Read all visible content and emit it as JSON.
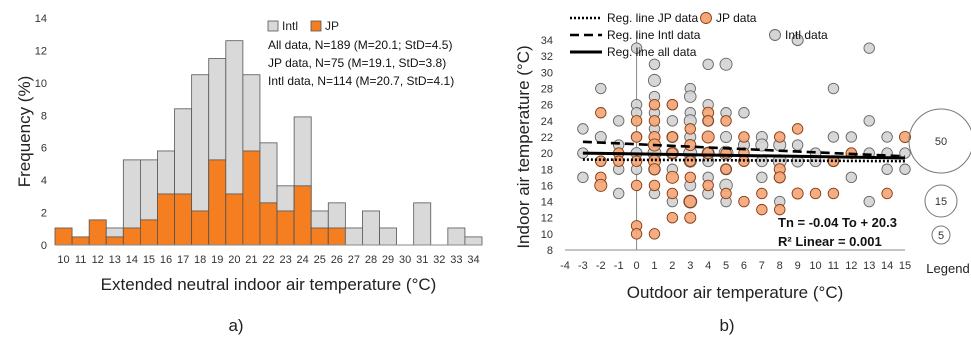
{
  "chart_data": [
    {
      "type": "bar",
      "panel_label": "a)",
      "xlabel": "Extended neutral indoor air temperature (°C)",
      "ylabel": "Frequency (%)",
      "ylim": [
        0,
        14
      ],
      "yticks": [
        0,
        2,
        4,
        6,
        8,
        10,
        12,
        14
      ],
      "grid": false,
      "legend_position": "top-right",
      "categories": [
        "10",
        "11",
        "12",
        "13",
        "14",
        "15",
        "16",
        "17",
        "18",
        "19",
        "20",
        "21",
        "22",
        "23",
        "24",
        "25",
        "26",
        "27",
        "28",
        "29",
        "30",
        "31",
        "32",
        "33",
        "34"
      ],
      "series": [
        {
          "name": "Intl",
          "color": "#d9d9d9",
          "values": [
            0,
            0,
            0,
            1.05,
            5.25,
            5.25,
            5.8,
            8.4,
            10.5,
            11.5,
            12.6,
            10.5,
            6.3,
            3.65,
            7.9,
            2.1,
            2.6,
            1.05,
            2.1,
            1.05,
            0,
            2.6,
            0,
            1.05,
            0.5
          ]
        },
        {
          "name": "JP",
          "color": "#f47e20",
          "values": [
            1.05,
            0.5,
            1.55,
            0.5,
            1.05,
            1.55,
            3.15,
            3.15,
            2.1,
            5.25,
            3.15,
            5.8,
            2.6,
            2.1,
            3.65,
            1.05,
            1.05,
            0,
            0,
            0,
            0,
            0,
            0,
            0,
            0
          ]
        }
      ],
      "annotations": [
        "All data,  N=189 (M=20.1; StD=4.5)",
        "JP data,  N=75 (M=19.1, StD=3.8)",
        "Intl data, N=114 (M=20.7, StD=4.1)"
      ]
    },
    {
      "type": "scatter",
      "panel_label": "b)",
      "xlabel": "Outdoor air temperature (°C)",
      "ylabel": "Indoor air temperature (°C)",
      "xlim": [
        -4,
        15
      ],
      "ylim": [
        8,
        35
      ],
      "xticks": [
        -4,
        -3,
        -2,
        -1,
        0,
        1,
        2,
        3,
        4,
        5,
        6,
        7,
        8,
        9,
        10,
        11,
        12,
        13,
        14,
        15
      ],
      "yticks": [
        8,
        10,
        12,
        14,
        16,
        18,
        20,
        22,
        24,
        26,
        28,
        30,
        32,
        34
      ],
      "grid": false,
      "legend_position": "top",
      "legend": {
        "title": "Legend",
        "items": [
          {
            "label": "Reg. line JP data",
            "style": "dotted"
          },
          {
            "label": "Reg. line Intl data",
            "style": "dashed"
          },
          {
            "label": "Reg. line all data",
            "style": "solid"
          },
          {
            "label": "JP data",
            "marker": "orange-circle"
          },
          {
            "label": "Intl data",
            "marker": "gray-circle"
          }
        ],
        "size_values": [
          50,
          15,
          5
        ]
      },
      "equation": "Tn = -0.04 To + 20.3",
      "r_squared": "R² Linear = 0.001",
      "regression_lines": [
        {
          "name": "Reg. line JP data",
          "style": "dotted",
          "x": [
            -3,
            15
          ],
          "y": [
            19.2,
            19.0
          ]
        },
        {
          "name": "Reg. line Intl data",
          "style": "dashed",
          "x": [
            -3,
            15
          ],
          "y": [
            21.4,
            19.6
          ]
        },
        {
          "name": "Reg. line all data",
          "style": "solid",
          "x": [
            -3,
            15
          ],
          "y": [
            20.0,
            19.4
          ]
        }
      ],
      "series": [
        {
          "name": "Intl data",
          "color": "#d4d4d4",
          "points": [
            {
              "x": -3,
              "y": 23,
              "s": 5
            },
            {
              "x": -3,
              "y": 20,
              "s": 5
            },
            {
              "x": -3,
              "y": 17,
              "s": 5
            },
            {
              "x": -2,
              "y": 28,
              "s": 5
            },
            {
              "x": -2,
              "y": 22,
              "s": 6
            },
            {
              "x": -2,
              "y": 19,
              "s": 5
            },
            {
              "x": -1,
              "y": 24,
              "s": 5
            },
            {
              "x": -1,
              "y": 21,
              "s": 5
            },
            {
              "x": -1,
              "y": 18,
              "s": 5
            },
            {
              "x": -1,
              "y": 15,
              "s": 5
            },
            {
              "x": 0,
              "y": 33,
              "s": 5
            },
            {
              "x": 0,
              "y": 26,
              "s": 5
            },
            {
              "x": 0,
              "y": 25,
              "s": 5
            },
            {
              "x": 0,
              "y": 22,
              "s": 5
            },
            {
              "x": 0,
              "y": 20,
              "s": 6
            },
            {
              "x": 0,
              "y": 18,
              "s": 5
            },
            {
              "x": 1,
              "y": 31,
              "s": 5
            },
            {
              "x": 1,
              "y": 29,
              "s": 8
            },
            {
              "x": 1,
              "y": 27,
              "s": 5
            },
            {
              "x": 1,
              "y": 25,
              "s": 5
            },
            {
              "x": 1,
              "y": 23,
              "s": 5
            },
            {
              "x": 1,
              "y": 20,
              "s": 10
            },
            {
              "x": 1,
              "y": 18,
              "s": 7
            },
            {
              "x": 1,
              "y": 15,
              "s": 5
            },
            {
              "x": 2,
              "y": 26,
              "s": 5
            },
            {
              "x": 2,
              "y": 24,
              "s": 5
            },
            {
              "x": 2,
              "y": 22,
              "s": 6
            },
            {
              "x": 2,
              "y": 20,
              "s": 8
            },
            {
              "x": 2,
              "y": 18,
              "s": 5
            },
            {
              "x": 2,
              "y": 14,
              "s": 5
            },
            {
              "x": 3,
              "y": 28,
              "s": 5
            },
            {
              "x": 3,
              "y": 27,
              "s": 7
            },
            {
              "x": 3,
              "y": 25,
              "s": 5
            },
            {
              "x": 3,
              "y": 24,
              "s": 8
            },
            {
              "x": 3,
              "y": 22,
              "s": 6
            },
            {
              "x": 3,
              "y": 20,
              "s": 10
            },
            {
              "x": 3,
              "y": 19,
              "s": 8
            },
            {
              "x": 3,
              "y": 16,
              "s": 6
            },
            {
              "x": 3,
              "y": 14,
              "s": 10
            },
            {
              "x": 4,
              "y": 31,
              "s": 5
            },
            {
              "x": 4,
              "y": 26,
              "s": 5
            },
            {
              "x": 4,
              "y": 24,
              "s": 6
            },
            {
              "x": 4,
              "y": 22,
              "s": 7
            },
            {
              "x": 4,
              "y": 20,
              "s": 8
            },
            {
              "x": 4,
              "y": 19,
              "s": 6
            },
            {
              "x": 4,
              "y": 17,
              "s": 5
            },
            {
              "x": 4,
              "y": 15,
              "s": 6
            },
            {
              "x": 5,
              "y": 31,
              "s": 8
            },
            {
              "x": 5,
              "y": 25,
              "s": 5
            },
            {
              "x": 5,
              "y": 22,
              "s": 6
            },
            {
              "x": 5,
              "y": 20,
              "s": 12
            },
            {
              "x": 5,
              "y": 18,
              "s": 6
            },
            {
              "x": 5,
              "y": 16,
              "s": 9
            },
            {
              "x": 5,
              "y": 14,
              "s": 5
            },
            {
              "x": 6,
              "y": 25,
              "s": 5
            },
            {
              "x": 6,
              "y": 21,
              "s": 6
            },
            {
              "x": 6,
              "y": 19,
              "s": 5
            },
            {
              "x": 7,
              "y": 22,
              "s": 6
            },
            {
              "x": 7,
              "y": 21,
              "s": 8
            },
            {
              "x": 7,
              "y": 19,
              "s": 6
            },
            {
              "x": 7,
              "y": 17,
              "s": 5
            },
            {
              "x": 8,
              "y": 21,
              "s": 8
            },
            {
              "x": 8,
              "y": 19,
              "s": 10
            },
            {
              "x": 8,
              "y": 17,
              "s": 6
            },
            {
              "x": 8,
              "y": 14,
              "s": 5
            },
            {
              "x": 9,
              "y": 34,
              "s": 6
            },
            {
              "x": 9,
              "y": 21,
              "s": 5
            },
            {
              "x": 9,
              "y": 19,
              "s": 7
            },
            {
              "x": 10,
              "y": 20,
              "s": 5
            },
            {
              "x": 10,
              "y": 19,
              "s": 6
            },
            {
              "x": 11,
              "y": 28,
              "s": 5
            },
            {
              "x": 11,
              "y": 22,
              "s": 5
            },
            {
              "x": 11,
              "y": 19,
              "s": 6
            },
            {
              "x": 12,
              "y": 22,
              "s": 5
            },
            {
              "x": 12,
              "y": 20,
              "s": 5
            },
            {
              "x": 12,
              "y": 17,
              "s": 5
            },
            {
              "x": 13,
              "y": 33,
              "s": 5
            },
            {
              "x": 13,
              "y": 24,
              "s": 5
            },
            {
              "x": 13,
              "y": 20,
              "s": 5
            },
            {
              "x": 13,
              "y": 14,
              "s": 5
            },
            {
              "x": 14,
              "y": 22,
              "s": 5
            },
            {
              "x": 14,
              "y": 20,
              "s": 5
            },
            {
              "x": 14,
              "y": 18,
              "s": 5
            },
            {
              "x": 15,
              "y": 20,
              "s": 5
            },
            {
              "x": 15,
              "y": 18,
              "s": 5
            }
          ]
        },
        {
          "name": "JP data",
          "color": "#f4a77a",
          "points": [
            {
              "x": -2,
              "y": 25,
              "s": 5
            },
            {
              "x": -2,
              "y": 19,
              "s": 5
            },
            {
              "x": -2,
              "y": 17,
              "s": 5
            },
            {
              "x": -2,
              "y": 16,
              "s": 8
            },
            {
              "x": -1,
              "y": 20,
              "s": 5
            },
            {
              "x": -1,
              "y": 19,
              "s": 5
            },
            {
              "x": 0,
              "y": 24,
              "s": 5
            },
            {
              "x": 0,
              "y": 22,
              "s": 5
            },
            {
              "x": 0,
              "y": 19,
              "s": 5
            },
            {
              "x": 0,
              "y": 16,
              "s": 5
            },
            {
              "x": 0,
              "y": 11,
              "s": 5
            },
            {
              "x": 0,
              "y": 10,
              "s": 5
            },
            {
              "x": 1,
              "y": 26,
              "s": 5
            },
            {
              "x": 1,
              "y": 24,
              "s": 5
            },
            {
              "x": 1,
              "y": 22,
              "s": 6
            },
            {
              "x": 1,
              "y": 21,
              "s": 8
            },
            {
              "x": 1,
              "y": 19,
              "s": 8
            },
            {
              "x": 1,
              "y": 18,
              "s": 6
            },
            {
              "x": 1,
              "y": 16,
              "s": 5
            },
            {
              "x": 1,
              "y": 10,
              "s": 5
            },
            {
              "x": 2,
              "y": 26,
              "s": 5
            },
            {
              "x": 2,
              "y": 22,
              "s": 5
            },
            {
              "x": 2,
              "y": 20,
              "s": 5
            },
            {
              "x": 2,
              "y": 17,
              "s": 8
            },
            {
              "x": 2,
              "y": 15,
              "s": 5
            },
            {
              "x": 2,
              "y": 12,
              "s": 5
            },
            {
              "x": 3,
              "y": 23,
              "s": 5
            },
            {
              "x": 3,
              "y": 21,
              "s": 6
            },
            {
              "x": 3,
              "y": 19,
              "s": 5
            },
            {
              "x": 3,
              "y": 17,
              "s": 5
            },
            {
              "x": 3,
              "y": 14,
              "s": 8
            },
            {
              "x": 3,
              "y": 12,
              "s": 6
            },
            {
              "x": 4,
              "y": 25,
              "s": 6
            },
            {
              "x": 4,
              "y": 24,
              "s": 5
            },
            {
              "x": 4,
              "y": 22,
              "s": 8
            },
            {
              "x": 4,
              "y": 20,
              "s": 6
            },
            {
              "x": 4,
              "y": 16,
              "s": 5
            },
            {
              "x": 5,
              "y": 24,
              "s": 5
            },
            {
              "x": 5,
              "y": 20,
              "s": 5
            },
            {
              "x": 5,
              "y": 18,
              "s": 5
            },
            {
              "x": 5,
              "y": 15,
              "s": 5
            },
            {
              "x": 6,
              "y": 22,
              "s": 5
            },
            {
              "x": 6,
              "y": 20,
              "s": 5
            },
            {
              "x": 6,
              "y": 19,
              "s": 5
            },
            {
              "x": 6,
              "y": 14,
              "s": 5
            },
            {
              "x": 7,
              "y": 15,
              "s": 5
            },
            {
              "x": 7,
              "y": 13,
              "s": 5
            },
            {
              "x": 8,
              "y": 22,
              "s": 5
            },
            {
              "x": 8,
              "y": 18,
              "s": 6
            },
            {
              "x": 8,
              "y": 17,
              "s": 6
            },
            {
              "x": 8,
              "y": 13,
              "s": 5
            },
            {
              "x": 9,
              "y": 23,
              "s": 5
            },
            {
              "x": 9,
              "y": 15,
              "s": 6
            },
            {
              "x": 10,
              "y": 15,
              "s": 5
            },
            {
              "x": 11,
              "y": 19,
              "s": 5
            },
            {
              "x": 11,
              "y": 15,
              "s": 5
            },
            {
              "x": 12,
              "y": 20,
              "s": 5
            },
            {
              "x": 14,
              "y": 15,
              "s": 5
            },
            {
              "x": 15,
              "y": 22,
              "s": 6
            }
          ]
        }
      ]
    }
  ]
}
